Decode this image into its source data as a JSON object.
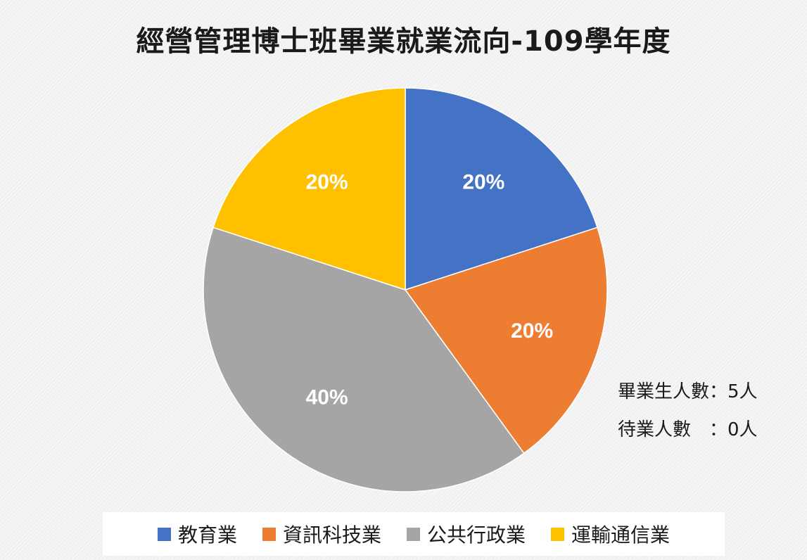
{
  "chart_data": {
    "type": "pie",
    "title": "經營管理博士班畢業就業流向-109學年度",
    "categories": [
      "教育業",
      "資訊科技業",
      "公共行政業",
      "運輸通信業"
    ],
    "values": [
      20,
      20,
      40,
      20
    ],
    "labels": [
      "20%",
      "20%",
      "40%",
      "20%"
    ],
    "colors": [
      "#4472C4",
      "#ED7D31",
      "#A5A5A5",
      "#FFC000"
    ],
    "legend_position": "bottom",
    "annotations": [
      "畢業生人數：5人",
      "待業人數　：0人"
    ]
  }
}
